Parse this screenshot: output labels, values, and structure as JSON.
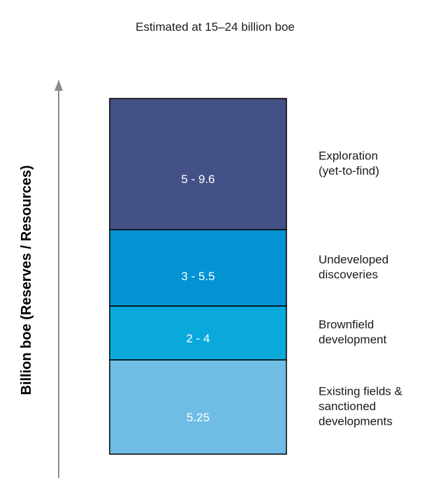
{
  "chart_data": {
    "type": "bar",
    "title": "Estimated at 15–24 billion boe",
    "ylabel": "Billion boe (Reserves / Resources)",
    "xlabel": "",
    "grid": false,
    "legend": "none",
    "stacking": "stacked",
    "series": [
      {
        "label": "Existing fields & sanctioned developments",
        "label_lines": [
          "Existing fields &",
          "sanctioned",
          "developments"
        ],
        "value_text": "5.25",
        "low": 5.25,
        "high": 5.25,
        "color": "#6fbde5"
      },
      {
        "label": "Brownfield development",
        "label_lines": [
          "Brownfield",
          "development"
        ],
        "value_text": "2 - 4",
        "low": 2,
        "high": 4,
        "color": "#0aa9dc"
      },
      {
        "label": "Undeveloped discoveries",
        "label_lines": [
          "Undeveloped",
          "discoveries"
        ],
        "value_text": "3 - 5.5",
        "low": 3,
        "high": 5.5,
        "color": "#0493d3"
      },
      {
        "label": "Exploration (yet-to-find)",
        "label_lines": [
          "Exploration",
          "(yet-to-find)"
        ],
        "value_text": "5 - 9.6",
        "low": 5,
        "high": 9.6,
        "color": "#445186"
      }
    ]
  }
}
